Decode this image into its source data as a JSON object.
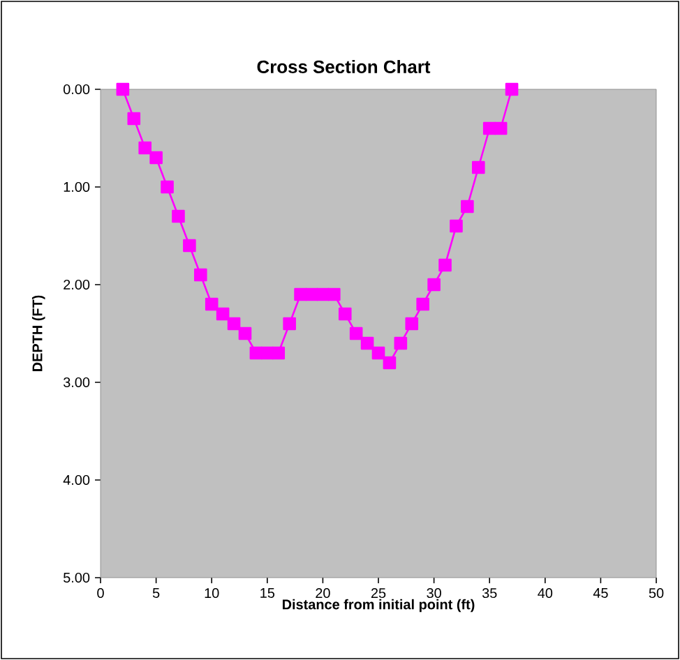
{
  "chart_data": {
    "type": "line",
    "title": "Cross Section Chart",
    "xlabel": "Distance from initial point (ft)",
    "ylabel": "DEPTH (FT)",
    "x": [
      2,
      3,
      4,
      5,
      6,
      7,
      8,
      9,
      10,
      11,
      12,
      13,
      14,
      15,
      16,
      17,
      18,
      19,
      20,
      21,
      22,
      23,
      24,
      25,
      26,
      27,
      28,
      29,
      30,
      31,
      32,
      33,
      34,
      35,
      36,
      37
    ],
    "values": [
      0,
      0.3,
      0.6,
      0.7,
      1.0,
      1.3,
      1.6,
      1.9,
      2.2,
      2.3,
      2.4,
      2.5,
      2.7,
      2.7,
      2.7,
      2.4,
      2.1,
      2.1,
      2.1,
      2.1,
      2.3,
      2.5,
      2.6,
      2.7,
      2.8,
      2.6,
      2.4,
      2.2,
      2.0,
      1.8,
      1.4,
      1.2,
      0.8,
      0.4,
      0.4,
      0.0
    ],
    "color": "#ff00ff",
    "marker": "square",
    "line_style": "solid",
    "grid": false,
    "xlim": [
      0,
      50
    ],
    "xticks": [
      0,
      5,
      10,
      15,
      20,
      25,
      30,
      35,
      40,
      45,
      50
    ],
    "ylim": [
      5,
      0
    ],
    "yticks": [
      {
        "value": 0,
        "label": "0.00"
      },
      {
        "value": 1,
        "label": "1.00"
      },
      {
        "value": 2,
        "label": "2.00"
      },
      {
        "value": 3,
        "label": "3.00"
      },
      {
        "value": 4,
        "label": "4.00"
      },
      {
        "value": 5,
        "label": "5.00"
      }
    ]
  }
}
